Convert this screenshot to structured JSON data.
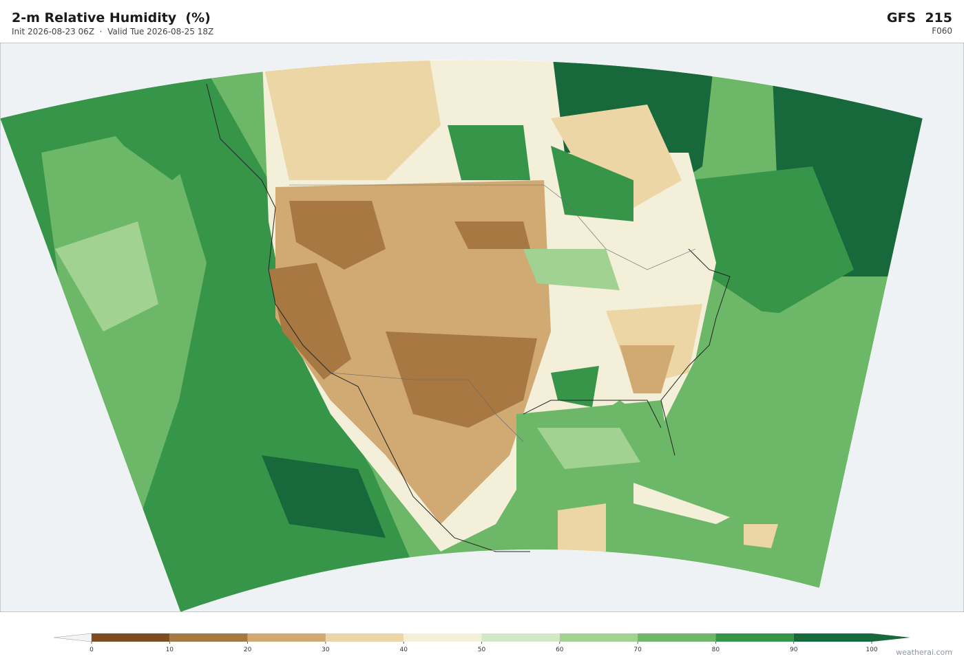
{
  "header": {
    "title": "2-m Relative Humidity  (%)",
    "subtitle": "Init 2026-08-23 06Z  ·  Valid Tue 2026-08-25 18Z",
    "model": "GFS  215",
    "forecast_hour": "F060"
  },
  "colorbar": {
    "ticks": [
      0,
      10,
      20,
      30,
      40,
      50,
      60,
      70,
      80,
      90,
      100
    ],
    "colors": [
      "#7f4c1f",
      "#a87842",
      "#d0aa72",
      "#ecd6a6",
      "#f3efd8",
      "#d3e8c6",
      "#a2d291",
      "#6db868",
      "#37954a",
      "#17683a"
    ],
    "under_color": "#f4f4f4",
    "over_color": "#17683a"
  },
  "credit": "weatherai.com"
}
